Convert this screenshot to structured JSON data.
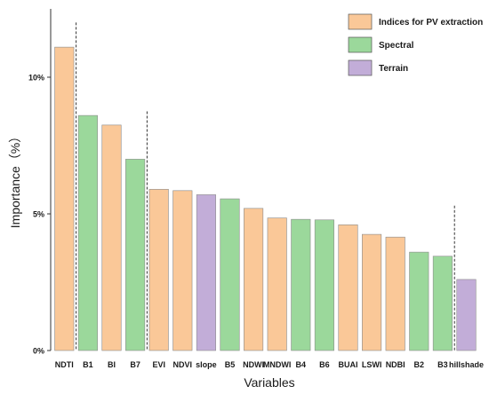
{
  "chart_data": {
    "type": "bar",
    "title": "",
    "xlabel": "Variables",
    "ylabel": "Importance（%）",
    "ylim": [
      0,
      12.5
    ],
    "yticks": [
      {
        "value": 0,
        "label": "0%"
      },
      {
        "value": 5,
        "label": "5%"
      },
      {
        "value": 10,
        "label": "10%"
      }
    ],
    "grid": false,
    "legend_position": "top-right",
    "groups": [
      {
        "key": "indices",
        "name": "Indices for PV extraction",
        "color": "#FAC898"
      },
      {
        "key": "spectral",
        "name": "Spectral",
        "color": "#9BD89B"
      },
      {
        "key": "terrain",
        "name": "Terrain",
        "color": "#C2ADD8"
      }
    ],
    "categories": [
      "NDTI",
      "B1",
      "BI",
      "B7",
      "EVI",
      "NDVI",
      "slope",
      "B5",
      "NDWI",
      "MNDWI",
      "B4",
      "B6",
      "BUAI",
      "LSWI",
      "NDBI",
      "B2",
      "B3",
      "hillshade"
    ],
    "values": [
      11.1,
      8.6,
      8.25,
      7.0,
      5.9,
      5.85,
      5.7,
      5.55,
      5.2,
      4.85,
      4.8,
      4.78,
      4.6,
      4.25,
      4.15,
      3.6,
      3.45,
      2.6
    ],
    "bar_groups": [
      "indices",
      "spectral",
      "indices",
      "spectral",
      "indices",
      "indices",
      "terrain",
      "spectral",
      "indices",
      "indices",
      "spectral",
      "spectral",
      "indices",
      "indices",
      "indices",
      "spectral",
      "spectral",
      "terrain"
    ],
    "dividers_after": [
      {
        "after": "NDTI",
        "top": 12.0
      },
      {
        "after": "B7",
        "top": 8.75
      },
      {
        "after": "B3",
        "top": 5.3
      }
    ]
  }
}
